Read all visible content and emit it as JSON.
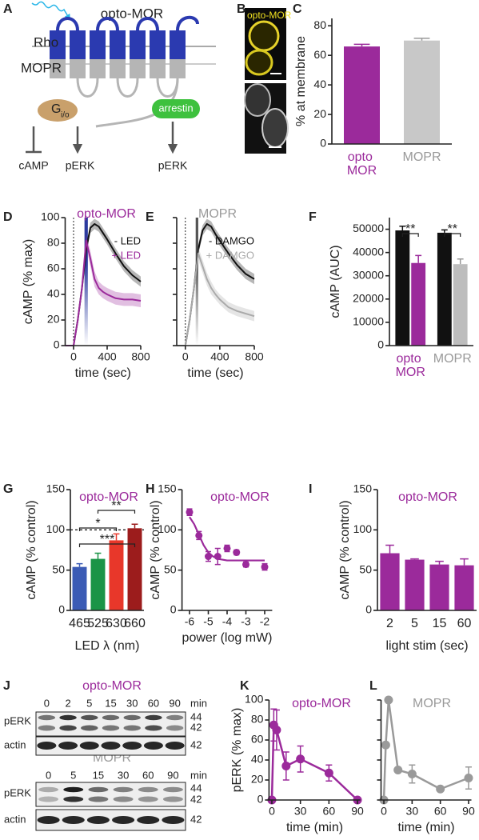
{
  "panels": [
    "A",
    "B",
    "C",
    "D",
    "E",
    "F",
    "G",
    "H",
    "I",
    "J",
    "K",
    "L"
  ],
  "diagram": {
    "title": "opto-MOR",
    "rho": "Rho",
    "mopr": "MOPR",
    "g_protein": "G",
    "g_subscript": "i/o",
    "arrestin": "arrestin",
    "outputs": [
      "cAMP",
      "pERK",
      "pERK"
    ]
  },
  "micrograph": {
    "label": "opto-MOR"
  },
  "blot": {
    "top": {
      "title": "opto-MOR",
      "lanes": [
        "0",
        "2",
        "5",
        "15",
        "30",
        "60",
        "90"
      ],
      "unit": "min",
      "rows": [
        "pERK",
        "actin"
      ],
      "markers": [
        "44",
        "42",
        "42"
      ]
    },
    "bottom": {
      "title": "MOPR",
      "lanes": [
        "0",
        "5",
        "15",
        "30",
        "60",
        "90"
      ],
      "unit": "min",
      "rows": [
        "pERK",
        "actin"
      ],
      "markers": [
        "44",
        "42",
        "42"
      ]
    }
  },
  "chart_data": [
    {
      "type": "bar",
      "ylabel": "% at membrane",
      "categories": [
        "opto MOR",
        "MOPR"
      ],
      "category_colors": [
        "#9b2a9b",
        "#9a9a9a"
      ],
      "values": [
        66,
        70
      ],
      "errors": [
        1.5,
        1.5
      ],
      "colors": [
        "#9b2a9b",
        "#c8c8c8"
      ],
      "ylim": [
        0,
        85
      ],
      "yticks": [
        0,
        20,
        40,
        60,
        80
      ]
    },
    {
      "type": "line",
      "title": "opto-MOR",
      "title_color": "#9b2a9b",
      "ylabel": "cAMP (% max)",
      "xlabel": "time (sec)",
      "x": [
        -100,
        0,
        50,
        100,
        150,
        200,
        250,
        300,
        350,
        400,
        500,
        600,
        700,
        800
      ],
      "series": [
        {
          "name": "- LED",
          "color": "#111111",
          "values": [
            0,
            0,
            20,
            45,
            75,
            92,
            95,
            93,
            88,
            83,
            72,
            62,
            55,
            50
          ],
          "errors": [
            0,
            0,
            2,
            3,
            4,
            4,
            4,
            4,
            4,
            4,
            4,
            4,
            4,
            4
          ]
        },
        {
          "name": "+ LED",
          "color": "#9b2a9b",
          "values": [
            0,
            0,
            20,
            45,
            82,
            68,
            52,
            45,
            42,
            40,
            37,
            36,
            36,
            35
          ],
          "errors": [
            0,
            0,
            2,
            3,
            5,
            6,
            6,
            5,
            5,
            5,
            5,
            5,
            5,
            5
          ]
        }
      ],
      "xlim": [
        -100,
        800
      ],
      "xticks": [
        0,
        400,
        800
      ],
      "ylim": [
        0,
        100
      ],
      "yticks": [
        0,
        20,
        40,
        60,
        80,
        100
      ],
      "reference_x": 0,
      "stimulus": [
        130,
        170
      ],
      "stimulus_color": "#2b3a9e"
    },
    {
      "type": "line",
      "title": "MOPR",
      "title_color": "#9a9a9a",
      "xlabel": "time (sec)",
      "x": [
        -100,
        0,
        50,
        100,
        150,
        200,
        250,
        300,
        350,
        400,
        500,
        600,
        700,
        800
      ],
      "series": [
        {
          "name": "- DAMGO",
          "color": "#111111",
          "values": [
            0,
            0,
            20,
            45,
            75,
            90,
            95,
            93,
            87,
            82,
            72,
            63,
            56,
            52
          ],
          "errors": [
            0,
            0,
            2,
            3,
            4,
            4,
            4,
            4,
            4,
            4,
            4,
            4,
            4,
            4
          ]
        },
        {
          "name": "+ DAMGO",
          "color": "#aaaaaa",
          "values": [
            0,
            0,
            20,
            45,
            72,
            62,
            52,
            45,
            40,
            36,
            30,
            27,
            25,
            23
          ],
          "errors": [
            0,
            0,
            2,
            3,
            5,
            5,
            5,
            5,
            4,
            4,
            4,
            4,
            4,
            4
          ]
        }
      ],
      "xlim": [
        -100,
        800
      ],
      "xticks": [
        0,
        400,
        800
      ],
      "ylim": [
        0,
        100
      ],
      "yticks": [
        0,
        20,
        40,
        60,
        80,
        100
      ],
      "show_ytick_labels": false,
      "reference_x": 0,
      "stimulus": [
        120,
        150
      ],
      "stimulus_color": "#555555"
    },
    {
      "type": "bar",
      "ylabel": "cAMP (AUC)",
      "categories": [
        "opto MOR",
        "MOPR"
      ],
      "category_colors": [
        "#9b2a9b",
        "#9a9a9a"
      ],
      "series": [
        {
          "colors": [
            "#111111",
            "#111111"
          ],
          "values": [
            49500,
            48500
          ],
          "errors": [
            1800,
            1200
          ]
        },
        {
          "colors": [
            "#9b2a9b",
            "#bdbdbd"
          ],
          "values": [
            35500,
            35000
          ],
          "errors": [
            3200,
            2200
          ]
        }
      ],
      "ylim": [
        0,
        55000
      ],
      "yticks": [
        0,
        10000,
        20000,
        30000,
        40000,
        50000
      ],
      "annotations": [
        "**",
        "**"
      ]
    },
    {
      "type": "bar",
      "title": "opto-MOR",
      "title_color": "#9b2a9b",
      "ylabel": "cAMP (% control)",
      "xlabel": "LED λ (nm)",
      "categories": [
        "465",
        "525",
        "630",
        "660"
      ],
      "values": [
        54,
        64,
        87,
        102
      ],
      "errors": [
        4,
        7,
        8,
        5
      ],
      "colors": [
        "#3b5bb5",
        "#1a9447",
        "#e8372a",
        "#9c1c1c"
      ],
      "ylim": [
        0,
        150
      ],
      "yticks": [
        0,
        50,
        100,
        150
      ],
      "reference_y": 100,
      "annotations": [
        "**",
        "*",
        "***"
      ]
    },
    {
      "type": "scatter",
      "title": "opto-MOR",
      "title_color": "#9b2a9b",
      "ylabel": "cAMP (% control)",
      "xlabel": "power (log mW)",
      "x": [
        -6,
        -5.5,
        -5,
        -4.5,
        -4,
        -3.5,
        -3,
        -2
      ],
      "values": [
        122,
        93,
        67,
        67,
        77,
        72,
        57,
        54
      ],
      "errors": [
        4,
        5,
        6,
        10,
        4,
        3,
        3,
        4
      ],
      "color": "#9b2a9b",
      "fit": {
        "x": [
          -6,
          -5.75,
          -5.5,
          -5.25,
          -5,
          -4.75,
          -4.5,
          -4,
          -3,
          -2
        ],
        "values": [
          116,
          107,
          94,
          81,
          72,
          67,
          64,
          62,
          62,
          62
        ]
      },
      "xlim": [
        -6.4,
        -1.6
      ],
      "xticks": [
        -6,
        -5,
        -4,
        -3,
        -2
      ],
      "ylim": [
        0,
        150
      ],
      "yticks": [
        0,
        50,
        100,
        150
      ]
    },
    {
      "type": "bar",
      "title": "opto-MOR",
      "title_color": "#9b2a9b",
      "ylabel": "cAMP (% control)",
      "xlabel": "light stim (sec)",
      "categories": [
        "2",
        "5",
        "15",
        "60"
      ],
      "values": [
        71,
        63,
        57,
        56
      ],
      "errors": [
        10,
        1,
        4,
        8
      ],
      "color": "#9b2a9b",
      "ylim": [
        0,
        150
      ],
      "yticks": [
        0,
        50,
        100,
        150
      ]
    },
    {
      "type": "line",
      "title": "opto-MOR",
      "title_color": "#9b2a9b",
      "ylabel": "pERK (% max)",
      "xlabel": "time (min)",
      "x": [
        0,
        2,
        5,
        15,
        30,
        60,
        90
      ],
      "series": [
        {
          "color": "#9b2a9b",
          "values": [
            0,
            75,
            70,
            34,
            41,
            27,
            0
          ],
          "errors": [
            0,
            16,
            20,
            14,
            13,
            8,
            0
          ]
        }
      ],
      "xlim": [
        -3,
        93
      ],
      "xticks": [
        0,
        30,
        60,
        90
      ],
      "ylim": [
        0,
        100
      ],
      "yticks": [
        0,
        20,
        40,
        60,
        80,
        100
      ],
      "markers": true
    },
    {
      "type": "line",
      "title": "MOPR",
      "title_color": "#9a9a9a",
      "xlabel": "time (min)",
      "x": [
        0,
        2,
        5,
        15,
        30,
        60,
        90
      ],
      "series": [
        {
          "color": "#9a9a9a",
          "values": [
            0,
            55,
            100,
            30,
            26,
            11,
            22
          ],
          "errors": [
            0,
            0,
            0,
            0,
            9,
            0,
            11
          ]
        }
      ],
      "xlim": [
        -3,
        93
      ],
      "xticks": [
        0,
        30,
        60,
        90
      ],
      "ylim": [
        0,
        100
      ],
      "yticks": [
        0,
        20,
        40,
        60,
        80,
        100
      ],
      "show_ytick_labels": false,
      "markers": true
    }
  ]
}
